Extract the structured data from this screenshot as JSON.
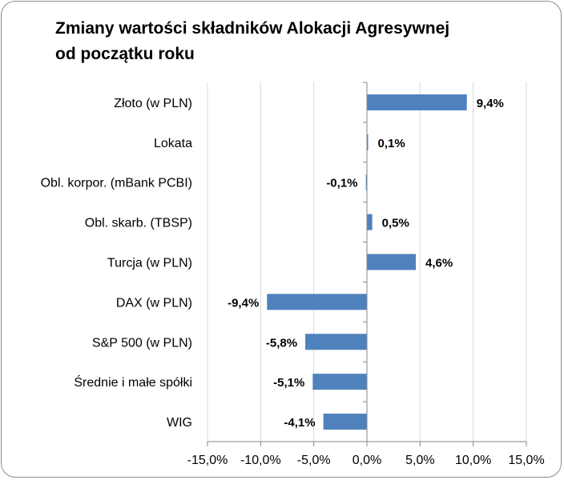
{
  "chart_data": {
    "type": "bar",
    "orientation": "horizontal",
    "title_line1": "Zmiany wartości składników Alokacji Agresywnej",
    "title_line2": "od początku roku",
    "categories": [
      "Złoto (w PLN)",
      "Lokata",
      "Obl. korpor. (mBank PCBI)",
      "Obl. skarb. (TBSP)",
      "Turcja (w PLN)",
      "DAX (w PLN)",
      "S&P 500 (w PLN)",
      "Średnie i małe spółki",
      "WIG"
    ],
    "values": [
      9.4,
      0.1,
      -0.1,
      0.5,
      4.6,
      -9.4,
      -5.8,
      -5.1,
      -4.1
    ],
    "data_labels": [
      "9,4%",
      "0,1%",
      "-0,1%",
      "0,5%",
      "4,6%",
      "-9,4%",
      "-5,8%",
      "-5,1%",
      "-4,1%"
    ],
    "xlim": [
      -15,
      15
    ],
    "x_ticks": [
      -15,
      -10,
      -5,
      0,
      5,
      10,
      15
    ],
    "x_tick_labels": [
      "-15,0%",
      "-10,0%",
      "-5,0%",
      "0,0%",
      "5,0%",
      "10,0%",
      "15,0%"
    ],
    "grid": true,
    "legend": "none",
    "bar_color": "#4f81bd",
    "grid_color": "#d9d9d9"
  }
}
